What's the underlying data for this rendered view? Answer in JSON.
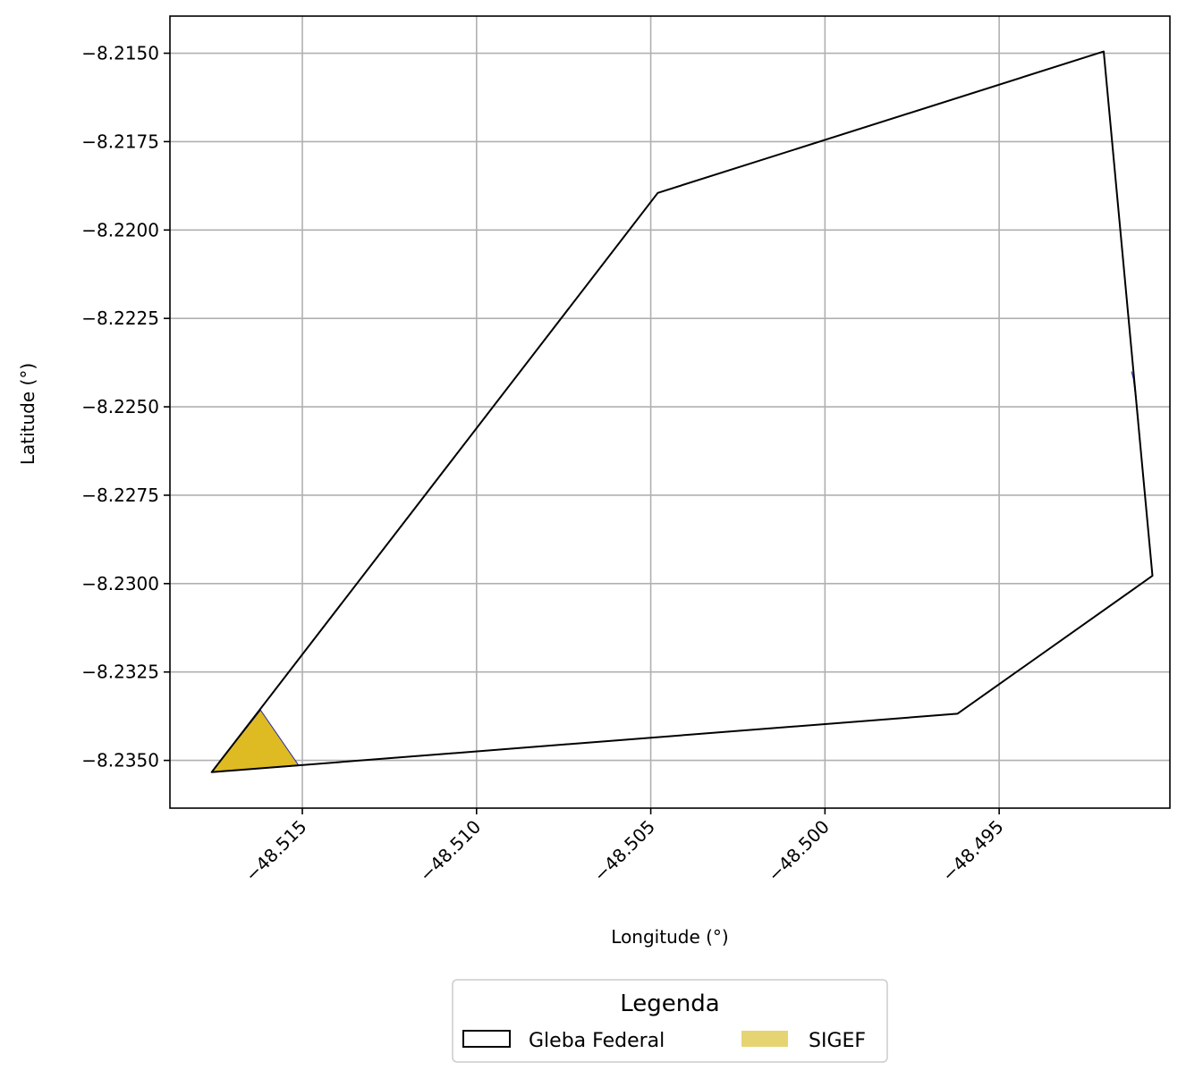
{
  "chart_data": {
    "type": "map",
    "title": "",
    "xlabel": "Longitude (°)",
    "ylabel": "Latitude (°)",
    "xlim": [
      -48.5188,
      -48.4901
    ],
    "ylim": [
      -8.23635,
      -8.21395
    ],
    "grid": true,
    "x_ticks": [
      {
        "value": -48.515,
        "label": "−48.515"
      },
      {
        "value": -48.51,
        "label": "−48.510"
      },
      {
        "value": -48.505,
        "label": "−48.505"
      },
      {
        "value": -48.5,
        "label": "−48.500"
      },
      {
        "value": -48.495,
        "label": "−48.495"
      }
    ],
    "y_ticks": [
      {
        "value": -8.215,
        "label": "−8.2150"
      },
      {
        "value": -8.2175,
        "label": "−8.2175"
      },
      {
        "value": -8.22,
        "label": "−8.2200"
      },
      {
        "value": -8.2225,
        "label": "−8.2225"
      },
      {
        "value": -8.225,
        "label": "−8.2250"
      },
      {
        "value": -8.2275,
        "label": "−8.2275"
      },
      {
        "value": -8.23,
        "label": "−8.2300"
      },
      {
        "value": -8.2325,
        "label": "−8.2325"
      },
      {
        "value": -8.235,
        "label": "−8.2350"
      }
    ],
    "series": [
      {
        "name": "Gleba Federal",
        "kind": "polygon-outline",
        "color": "#000000",
        "points": [
          [
            -48.5176,
            -8.23533
          ],
          [
            -48.5048,
            -8.21895
          ],
          [
            -48.492,
            -8.21495
          ],
          [
            -48.4906,
            -8.22978
          ],
          [
            -48.4962,
            -8.23368
          ],
          [
            -48.5176,
            -8.23533
          ]
        ]
      },
      {
        "name": "SIGEF",
        "kind": "polygon-fill",
        "color": "#DEBB22",
        "edge_color": "#2a2aa8",
        "polygons": [
          [
            [
              -48.5176,
              -8.23533
            ],
            [
              -48.5162,
              -8.23358
            ],
            [
              -48.5151,
              -8.23515
            ]
          ],
          [
            [
              -48.4912,
              -8.224
            ],
            [
              -48.4911,
              -8.2244
            ],
            [
              -48.491,
              -8.2254
            ],
            [
              -48.49115,
              -8.2242
            ]
          ]
        ]
      }
    ],
    "legend": {
      "title": "Legenda",
      "placement": "bottom-center",
      "items": [
        {
          "label": "Gleba Federal",
          "swatch": "outline",
          "color": "#000000"
        },
        {
          "label": "SIGEF",
          "swatch": "fill",
          "color": "#E6D473"
        }
      ]
    }
  }
}
